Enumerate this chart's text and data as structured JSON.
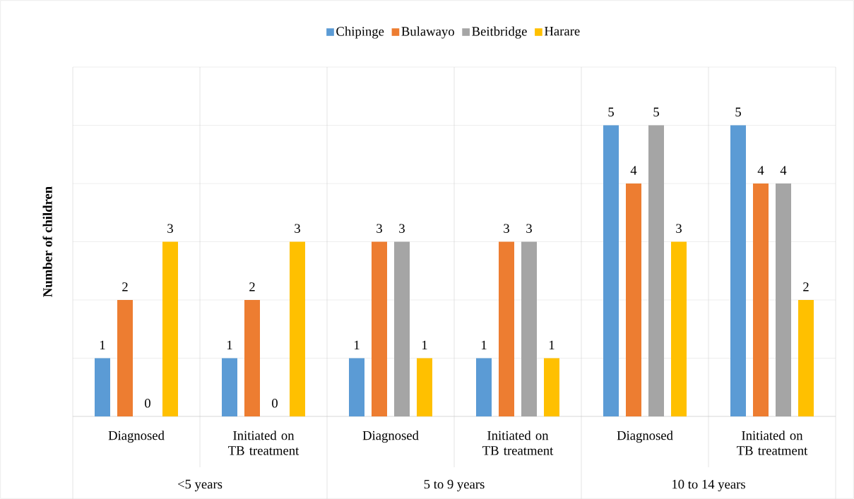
{
  "chart_data": {
    "type": "bar",
    "ylabel": "Number of children",
    "categories": [
      "Diagnosed",
      "Initiated on TB treatment",
      "Diagnosed",
      "Initiated on TB treatment",
      "Diagnosed",
      "Initiated on TB treatment"
    ],
    "series": [
      {
        "name": "Chipinge",
        "color": "#5b9bd5",
        "values": [
          1,
          1,
          1,
          1,
          5,
          5
        ]
      },
      {
        "name": "Bulawayo",
        "color": "#ed7d31",
        "values": [
          2,
          2,
          3,
          3,
          4,
          4
        ]
      },
      {
        "name": "Beitbridge",
        "color": "#a5a5a5",
        "values": [
          0,
          0,
          3,
          3,
          5,
          4
        ]
      },
      {
        "name": "Harare",
        "color": "#ffc000",
        "values": [
          3,
          3,
          1,
          1,
          3,
          2
        ]
      }
    ],
    "annotations": [
      "<5 years",
      "5 to 9 years",
      "10 to 14 years"
    ],
    "ylim": [
      0,
      6
    ],
    "yticks": [
      {
        "value": 0,
        "label": null
      },
      {
        "value": 1,
        "label": null
      },
      {
        "value": 2,
        "label": null
      },
      {
        "value": 3,
        "label": null
      },
      {
        "value": 4,
        "label": null
      },
      {
        "value": 5,
        "label": null
      },
      {
        "value": 6,
        "label": null
      }
    ],
    "tick_labels": "x",
    "grid": "y",
    "legend": "top",
    "data_labels": true
  }
}
